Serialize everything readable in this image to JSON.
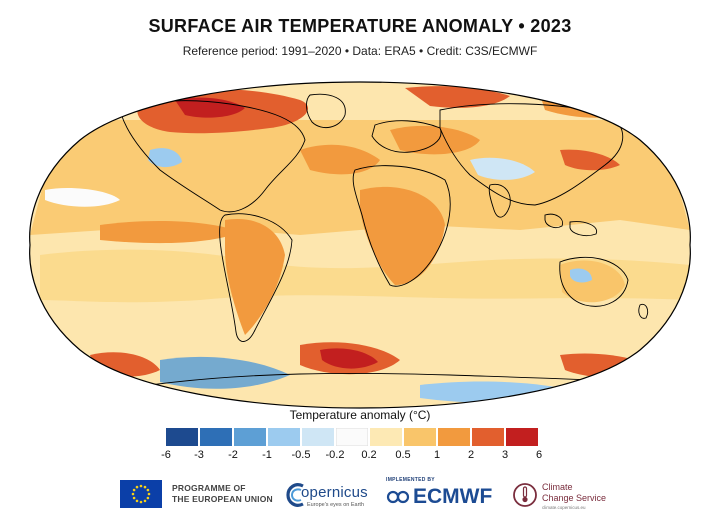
{
  "header": {
    "title": "SURFACE AIR TEMPERATURE ANOMALY • 2023",
    "subtitle": "Reference period: 1991–2020 • Data: ERA5 • Credit: C3S/ECMWF"
  },
  "legend": {
    "title": "Temperature anomaly (°C)",
    "ticks": [
      "-6",
      "-3",
      "-2",
      "-1",
      "-0.5",
      "-0.2",
      "0.2",
      "0.5",
      "1",
      "2",
      "3",
      "6"
    ],
    "colors": [
      "#1d4a8f",
      "#2e6fb6",
      "#5d9fd5",
      "#9ccbef",
      "#cfe6f5",
      "#fbfbfb",
      "#fde9b4",
      "#f9c56a",
      "#f29a3e",
      "#e25f2e",
      "#c21f1f"
    ]
  },
  "map": {
    "ocean_base_color": "#fde6ae",
    "land_outline_color": "#000000"
  },
  "footer": {
    "eu_text_line1": "PROGRAMME OF",
    "eu_text_line2": "THE EUROPEAN UNION",
    "copernicus_word": "opernicus",
    "copernicus_tagline": "Europe's eyes on Earth",
    "ecmwf_implemented": "IMPLEMENTED BY",
    "ecmwf_word": "ECMWF",
    "ccs_line1": "Climate",
    "ccs_line2": "Change Service",
    "ccs_url": "climate.copernicus.eu"
  }
}
